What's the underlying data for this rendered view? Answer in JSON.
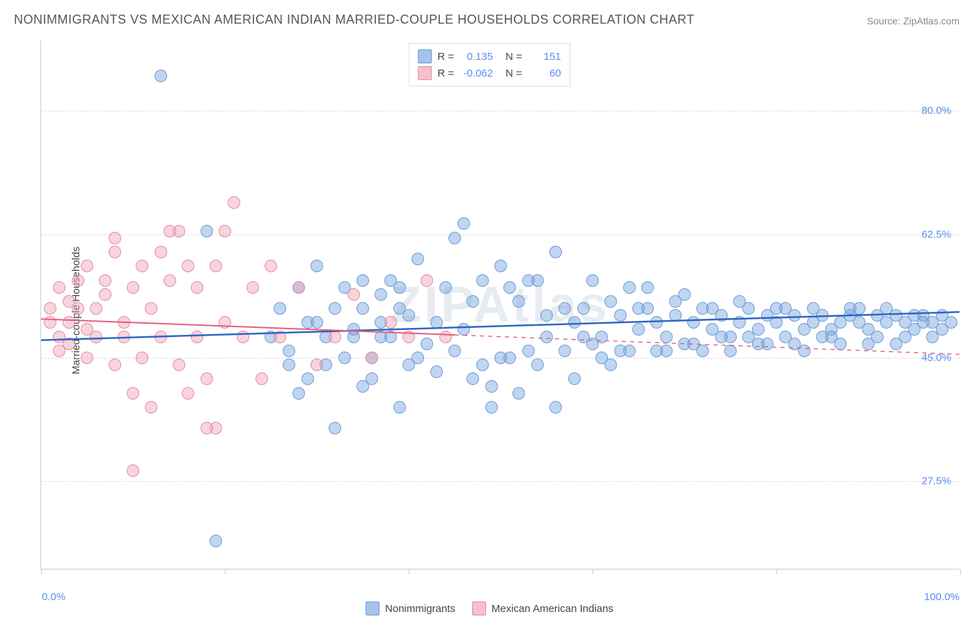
{
  "title": "NONIMMIGRANTS VS MEXICAN AMERICAN INDIAN MARRIED-COUPLE HOUSEHOLDS CORRELATION CHART",
  "source": "Source: ZipAtlas.com",
  "watermark": "ZIPAtlas",
  "ylabel": "Married-couple Households",
  "chart": {
    "type": "scatter",
    "background_color": "#ffffff",
    "grid_color": "#dddddd",
    "axis_color": "#cccccc",
    "xlim": [
      0,
      100
    ],
    "ylim": [
      15,
      90
    ],
    "xtick_positions": [
      0,
      20,
      40,
      60,
      80,
      100
    ],
    "xtick_labels_shown": {
      "0": "0.0%",
      "100": "100.0%"
    },
    "ytick_positions": [
      27.5,
      45.0,
      62.5,
      80.0
    ],
    "ytick_labels": [
      "27.5%",
      "45.0%",
      "62.5%",
      "80.0%"
    ],
    "marker_radius": 9,
    "marker_opacity": 0.55,
    "marker_stroke_width": 1.2,
    "title_fontsize": 18,
    "label_fontsize": 15,
    "tick_fontsize": 15,
    "tick_label_color": "#5b8def",
    "series": [
      {
        "name": "Nonimmigrants",
        "color_fill": "rgba(116,162,222,0.45)",
        "color_stroke": "#6a9bd8",
        "swatch_color": "#a8c3e8",
        "swatch_border": "#6a9bd8",
        "trend": {
          "x1": 0,
          "y1": 47.5,
          "x2": 100,
          "y2": 51.5,
          "color": "#2f66c4",
          "width": 2.5,
          "dash_after_x": null
        },
        "R": "0.135",
        "N": "151",
        "points": [
          [
            13,
            85
          ],
          [
            18,
            63
          ],
          [
            37,
            54
          ],
          [
            35,
            52
          ],
          [
            40,
            51
          ],
          [
            42,
            47
          ],
          [
            45,
            62
          ],
          [
            46,
            64
          ],
          [
            47,
            42
          ],
          [
            48,
            56
          ],
          [
            49,
            38
          ],
          [
            50,
            45
          ],
          [
            51,
            45
          ],
          [
            52,
            53
          ],
          [
            53,
            56
          ],
          [
            54,
            44
          ],
          [
            55,
            48
          ],
          [
            56,
            38
          ],
          [
            57,
            52
          ],
          [
            58,
            50
          ],
          [
            59,
            48
          ],
          [
            60,
            47
          ],
          [
            61,
            45
          ],
          [
            62,
            53
          ],
          [
            63,
            51
          ],
          [
            64,
            55
          ],
          [
            65,
            49
          ],
          [
            66,
            52
          ],
          [
            67,
            50
          ],
          [
            68,
            48
          ],
          [
            69,
            51
          ],
          [
            70,
            47
          ],
          [
            71,
            50
          ],
          [
            72,
            52
          ],
          [
            73,
            49
          ],
          [
            74,
            51
          ],
          [
            75,
            48
          ],
          [
            76,
            50
          ],
          [
            77,
            52
          ],
          [
            78,
            49
          ],
          [
            79,
            51
          ],
          [
            80,
            50
          ],
          [
            81,
            48
          ],
          [
            82,
            51
          ],
          [
            83,
            49
          ],
          [
            84,
            50
          ],
          [
            85,
            51
          ],
          [
            86,
            49
          ],
          [
            87,
            50
          ],
          [
            88,
            51
          ],
          [
            89,
            50
          ],
          [
            90,
            49
          ],
          [
            91,
            51
          ],
          [
            92,
            50
          ],
          [
            93,
            51
          ],
          [
            94,
            50
          ],
          [
            95,
            49
          ],
          [
            96,
            51
          ],
          [
            97,
            50
          ],
          [
            98,
            51
          ],
          [
            28,
            40
          ],
          [
            30,
            58
          ],
          [
            32,
            35
          ],
          [
            34,
            49
          ],
          [
            36,
            45
          ],
          [
            38,
            56
          ],
          [
            39,
            38
          ],
          [
            41,
            59
          ],
          [
            43,
            43
          ],
          [
            44,
            55
          ],
          [
            46,
            49
          ],
          [
            48,
            44
          ],
          [
            50,
            58
          ],
          [
            52,
            40
          ],
          [
            54,
            56
          ],
          [
            56,
            60
          ],
          [
            58,
            42
          ],
          [
            60,
            56
          ],
          [
            62,
            44
          ],
          [
            64,
            46
          ],
          [
            66,
            55
          ],
          [
            68,
            46
          ],
          [
            70,
            54
          ],
          [
            72,
            46
          ],
          [
            74,
            48
          ],
          [
            76,
            53
          ],
          [
            78,
            47
          ],
          [
            80,
            52
          ],
          [
            82,
            47
          ],
          [
            84,
            52
          ],
          [
            86,
            48
          ],
          [
            88,
            52
          ],
          [
            90,
            47
          ],
          [
            92,
            52
          ],
          [
            94,
            48
          ],
          [
            96,
            50
          ],
          [
            98,
            49
          ],
          [
            19,
            19
          ],
          [
            27,
            46
          ],
          [
            29,
            50
          ],
          [
            31,
            44
          ],
          [
            33,
            55
          ],
          [
            35,
            41
          ],
          [
            37,
            48
          ],
          [
            39,
            52
          ],
          [
            41,
            45
          ],
          [
            43,
            50
          ],
          [
            45,
            46
          ],
          [
            47,
            53
          ],
          [
            49,
            41
          ],
          [
            51,
            55
          ],
          [
            53,
            46
          ],
          [
            55,
            51
          ],
          [
            57,
            46
          ],
          [
            59,
            52
          ],
          [
            61,
            48
          ],
          [
            63,
            46
          ],
          [
            65,
            52
          ],
          [
            67,
            46
          ],
          [
            69,
            53
          ],
          [
            71,
            47
          ],
          [
            73,
            52
          ],
          [
            75,
            46
          ],
          [
            77,
            48
          ],
          [
            79,
            47
          ],
          [
            81,
            52
          ],
          [
            83,
            46
          ],
          [
            85,
            48
          ],
          [
            87,
            47
          ],
          [
            89,
            52
          ],
          [
            91,
            48
          ],
          [
            93,
            47
          ],
          [
            95,
            51
          ],
          [
            97,
            48
          ],
          [
            99,
            50
          ],
          [
            25,
            48
          ],
          [
            26,
            52
          ],
          [
            27,
            44
          ],
          [
            28,
            55
          ],
          [
            29,
            42
          ],
          [
            30,
            50
          ],
          [
            31,
            48
          ],
          [
            32,
            52
          ],
          [
            33,
            45
          ],
          [
            34,
            48
          ],
          [
            35,
            56
          ],
          [
            36,
            42
          ],
          [
            37,
            50
          ],
          [
            38,
            48
          ],
          [
            39,
            55
          ],
          [
            40,
            44
          ]
        ]
      },
      {
        "name": "Mexican American Indians",
        "color_fill": "rgba(240,160,180,0.45)",
        "color_stroke": "#e28ba3",
        "swatch_color": "#f5c0cd",
        "swatch_border": "#e28ba3",
        "trend": {
          "x1": 0,
          "y1": 50.5,
          "x2": 100,
          "y2": 45.5,
          "color": "#e85d7a",
          "width": 2,
          "dash_after_x": 45
        },
        "R": "-0.062",
        "N": "60",
        "points": [
          [
            1,
            50
          ],
          [
            1,
            52
          ],
          [
            2,
            48
          ],
          [
            2,
            55
          ],
          [
            2,
            46
          ],
          [
            3,
            53
          ],
          [
            3,
            50
          ],
          [
            3,
            47
          ],
          [
            4,
            52
          ],
          [
            4,
            56
          ],
          [
            5,
            49
          ],
          [
            5,
            45
          ],
          [
            5,
            58
          ],
          [
            6,
            52
          ],
          [
            6,
            48
          ],
          [
            7,
            54
          ],
          [
            7,
            56
          ],
          [
            8,
            44
          ],
          [
            8,
            60
          ],
          [
            9,
            50
          ],
          [
            9,
            48
          ],
          [
            10,
            55
          ],
          [
            10,
            40
          ],
          [
            11,
            58
          ],
          [
            11,
            45
          ],
          [
            12,
            52
          ],
          [
            13,
            48
          ],
          [
            13,
            60
          ],
          [
            14,
            56
          ],
          [
            15,
            44
          ],
          [
            15,
            63
          ],
          [
            16,
            40
          ],
          [
            17,
            55
          ],
          [
            17,
            48
          ],
          [
            18,
            42
          ],
          [
            19,
            58
          ],
          [
            19,
            35
          ],
          [
            20,
            63
          ],
          [
            20,
            50
          ],
          [
            21,
            67
          ],
          [
            22,
            48
          ],
          [
            23,
            55
          ],
          [
            24,
            42
          ],
          [
            25,
            58
          ],
          [
            26,
            48
          ],
          [
            28,
            55
          ],
          [
            30,
            44
          ],
          [
            32,
            48
          ],
          [
            34,
            54
          ],
          [
            36,
            45
          ],
          [
            38,
            50
          ],
          [
            40,
            48
          ],
          [
            42,
            56
          ],
          [
            44,
            48
          ],
          [
            8,
            62
          ],
          [
            10,
            29
          ],
          [
            12,
            38
          ],
          [
            14,
            63
          ],
          [
            16,
            58
          ],
          [
            18,
            35
          ]
        ]
      }
    ]
  },
  "stats_box": {
    "rows": [
      {
        "swatch_fill": "#a8c3e8",
        "swatch_border": "#6a9bd8",
        "r_label": "R =",
        "r_val": "0.135",
        "n_label": "N =",
        "n_val": "151"
      },
      {
        "swatch_fill": "#f5c0cd",
        "swatch_border": "#e28ba3",
        "r_label": "R =",
        "r_val": "-0.062",
        "n_label": "N =",
        "n_val": "60"
      }
    ]
  },
  "bottom_legend": {
    "items": [
      {
        "swatch_fill": "#a8c3e8",
        "swatch_border": "#6a9bd8",
        "label": "Nonimmigrants"
      },
      {
        "swatch_fill": "#f5c0cd",
        "swatch_border": "#e28ba3",
        "label": "Mexican American Indians"
      }
    ]
  }
}
